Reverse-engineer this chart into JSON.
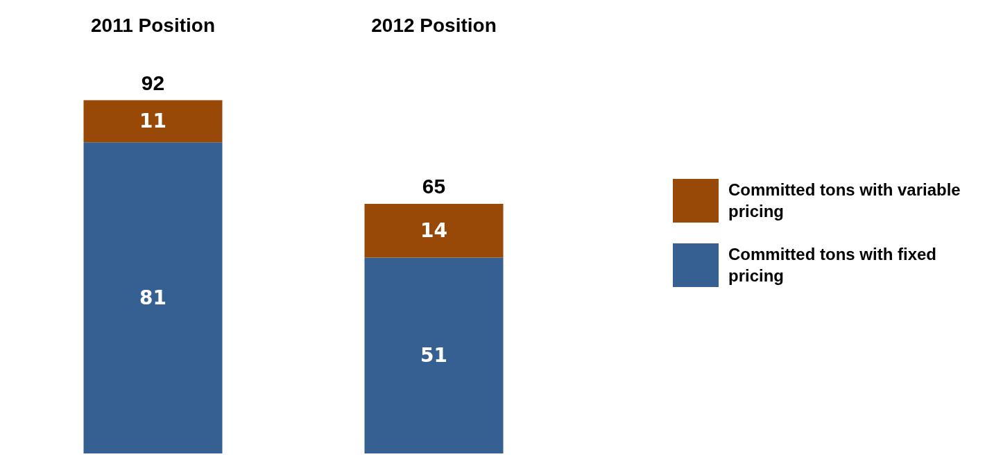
{
  "chart_data": {
    "type": "bar",
    "stacked": true,
    "categories": [
      "2011 Position",
      "2012 Position"
    ],
    "series": [
      {
        "name": "Committed tons with fixed pricing",
        "color": "#376092",
        "values": [
          81,
          51
        ]
      },
      {
        "name": "Committed tons with variable pricing",
        "color": "#984807",
        "values": [
          11,
          14
        ]
      }
    ],
    "data_labels": true,
    "totals": [
      "92",
      "65"
    ],
    "legend": "right",
    "grid": false
  }
}
